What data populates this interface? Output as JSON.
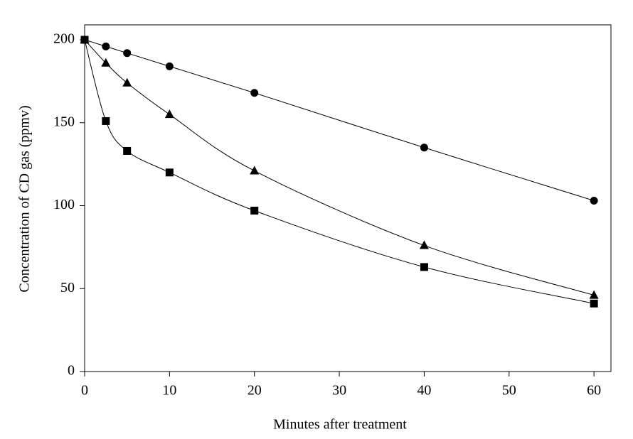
{
  "chart_data": {
    "type": "line",
    "xlabel": "Minutes after treatment",
    "ylabel": "Concentration of CD gas (ppmv)",
    "x": [
      0,
      2.5,
      5,
      10,
      20,
      40,
      60
    ],
    "series": [
      {
        "marker": "circle",
        "color": "#000000",
        "values": [
          200,
          196,
          192,
          184,
          168,
          135,
          103
        ]
      },
      {
        "marker": "triangle",
        "color": "#000000",
        "values": [
          200,
          186,
          174,
          155,
          121,
          76,
          46
        ]
      },
      {
        "marker": "square",
        "color": "#000000",
        "values": [
          200,
          151,
          133,
          120,
          97,
          63,
          41
        ]
      }
    ],
    "xlim": [
      0,
      62
    ],
    "ylim": [
      0,
      209
    ],
    "xticks": [
      0,
      10,
      20,
      30,
      40,
      50,
      60
    ],
    "yticks": [
      0,
      50,
      100,
      150,
      200
    ],
    "smooth": true,
    "grid": false
  }
}
